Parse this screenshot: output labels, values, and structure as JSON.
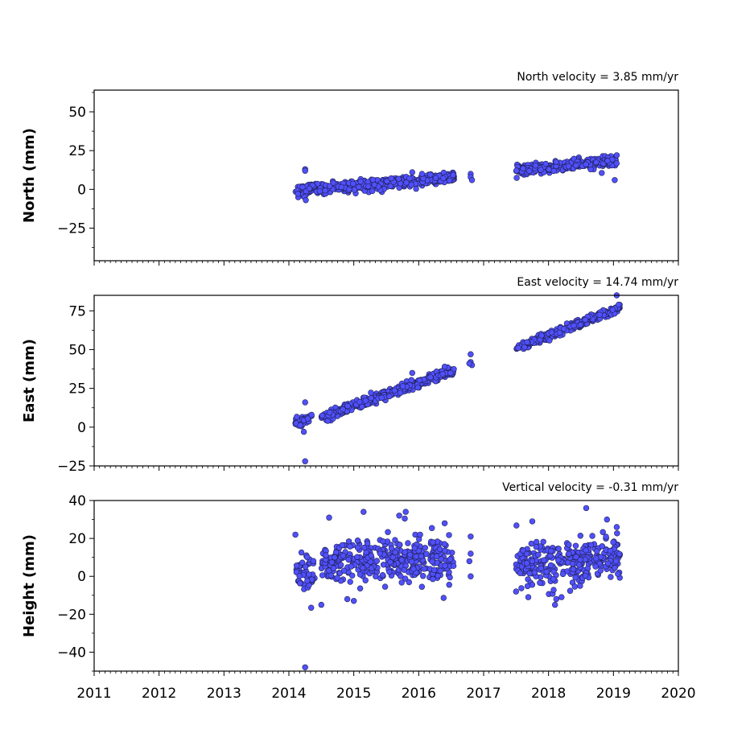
{
  "chart_data": [
    {
      "type": "scatter",
      "annotation": "North velocity = 3.85 mm/yr",
      "ylabel": "North (mm)",
      "xlim": [
        2011,
        2020
      ],
      "ylim": [
        -46,
        64
      ],
      "yticks": [
        -25,
        0,
        25,
        50
      ],
      "ytick_labels": [
        "−25",
        "0",
        "25",
        "50"
      ],
      "marker_color": "#5050ff",
      "marker_edge": "#202050",
      "trend_segments": [
        {
          "x": [
            2014.1,
            2016.55
          ],
          "y": [
            -1,
            8
          ],
          "spread": 1.8
        },
        {
          "x": [
            2017.5,
            2019.05
          ],
          "y": [
            12,
            19
          ],
          "spread": 1.6
        }
      ],
      "points": [
        [
          2014.25,
          13
        ],
        [
          2014.25,
          12
        ],
        [
          2014.24,
          -5
        ],
        [
          2014.26,
          -7
        ],
        [
          2016.8,
          10
        ],
        [
          2016.8,
          8
        ],
        [
          2016.82,
          6
        ],
        [
          2019.02,
          6
        ],
        [
          2019.05,
          22
        ],
        [
          2015.9,
          11
        ],
        [
          2016.05,
          10
        ]
      ]
    },
    {
      "type": "scatter",
      "annotation": "East velocity = 14.74 mm/yr",
      "ylabel": "East (mm)",
      "xlim": [
        2011,
        2020
      ],
      "ylim": [
        -25,
        85
      ],
      "yticks": [
        -25,
        0,
        25,
        50,
        75
      ],
      "ytick_labels": [
        "−25",
        "0",
        "25",
        "50",
        "75"
      ],
      "marker_color": "#5050ff",
      "marker_edge": "#202050",
      "trend_segments": [
        {
          "x": [
            2014.1,
            2014.35
          ],
          "y": [
            2,
            6
          ],
          "spread": 2.0
        },
        {
          "x": [
            2014.5,
            2016.55
          ],
          "y": [
            6,
            37
          ],
          "spread": 1.5
        },
        {
          "x": [
            2017.5,
            2019.1
          ],
          "y": [
            51,
            77
          ],
          "spread": 1.3
        }
      ],
      "points": [
        [
          2014.25,
          -22
        ],
        [
          2014.25,
          16
        ],
        [
          2014.23,
          -3
        ],
        [
          2016.8,
          47
        ],
        [
          2016.8,
          42
        ],
        [
          2016.82,
          40
        ],
        [
          2016.78,
          41
        ],
        [
          2019.05,
          85
        ],
        [
          2019.08,
          79
        ],
        [
          2016.4,
          39
        ],
        [
          2015.9,
          35
        ]
      ]
    },
    {
      "type": "scatter",
      "annotation": "Vertical velocity = -0.31 mm/yr",
      "ylabel": "Height (mm)",
      "xlim": [
        2011,
        2020
      ],
      "ylim": [
        -50,
        40
      ],
      "yticks": [
        -40,
        -20,
        0,
        20,
        40
      ],
      "ytick_labels": [
        "−40",
        "−20",
        "0",
        "20",
        "40"
      ],
      "marker_color": "#5050ff",
      "marker_edge": "#202050",
      "trend_segments": [
        {
          "x": [
            2014.1,
            2014.4
          ],
          "y": [
            5,
            3
          ],
          "spread": 6
        },
        {
          "x": [
            2014.5,
            2016.55
          ],
          "y": [
            7,
            9
          ],
          "spread": 6
        },
        {
          "x": [
            2017.5,
            2019.1
          ],
          "y": [
            5,
            10
          ],
          "spread": 6
        }
      ],
      "points": [
        [
          2014.25,
          -48
        ],
        [
          2014.5,
          -15
        ],
        [
          2014.1,
          22
        ],
        [
          2014.62,
          31
        ],
        [
          2015.15,
          34
        ],
        [
          2015.8,
          34
        ],
        [
          2015.7,
          32
        ],
        [
          2016.4,
          28
        ],
        [
          2016.8,
          21
        ],
        [
          2016.8,
          0
        ],
        [
          2016.8,
          12
        ],
        [
          2016.78,
          8
        ],
        [
          2017.75,
          29
        ],
        [
          2018.1,
          -15
        ],
        [
          2018.12,
          -12
        ],
        [
          2018.58,
          36
        ],
        [
          2018.9,
          30
        ],
        [
          2019.05,
          26
        ],
        [
          2018.2,
          -11
        ],
        [
          2015.0,
          -13
        ],
        [
          2017.5,
          -8
        ],
        [
          2014.9,
          -12
        ]
      ]
    }
  ],
  "x_axis": {
    "ticks": [
      2011,
      2012,
      2013,
      2014,
      2015,
      2016,
      2017,
      2018,
      2019,
      2020
    ],
    "tick_labels": [
      "2011",
      "2012",
      "2013",
      "2014",
      "2015",
      "2016",
      "2017",
      "2018",
      "2019",
      "2020"
    ]
  }
}
